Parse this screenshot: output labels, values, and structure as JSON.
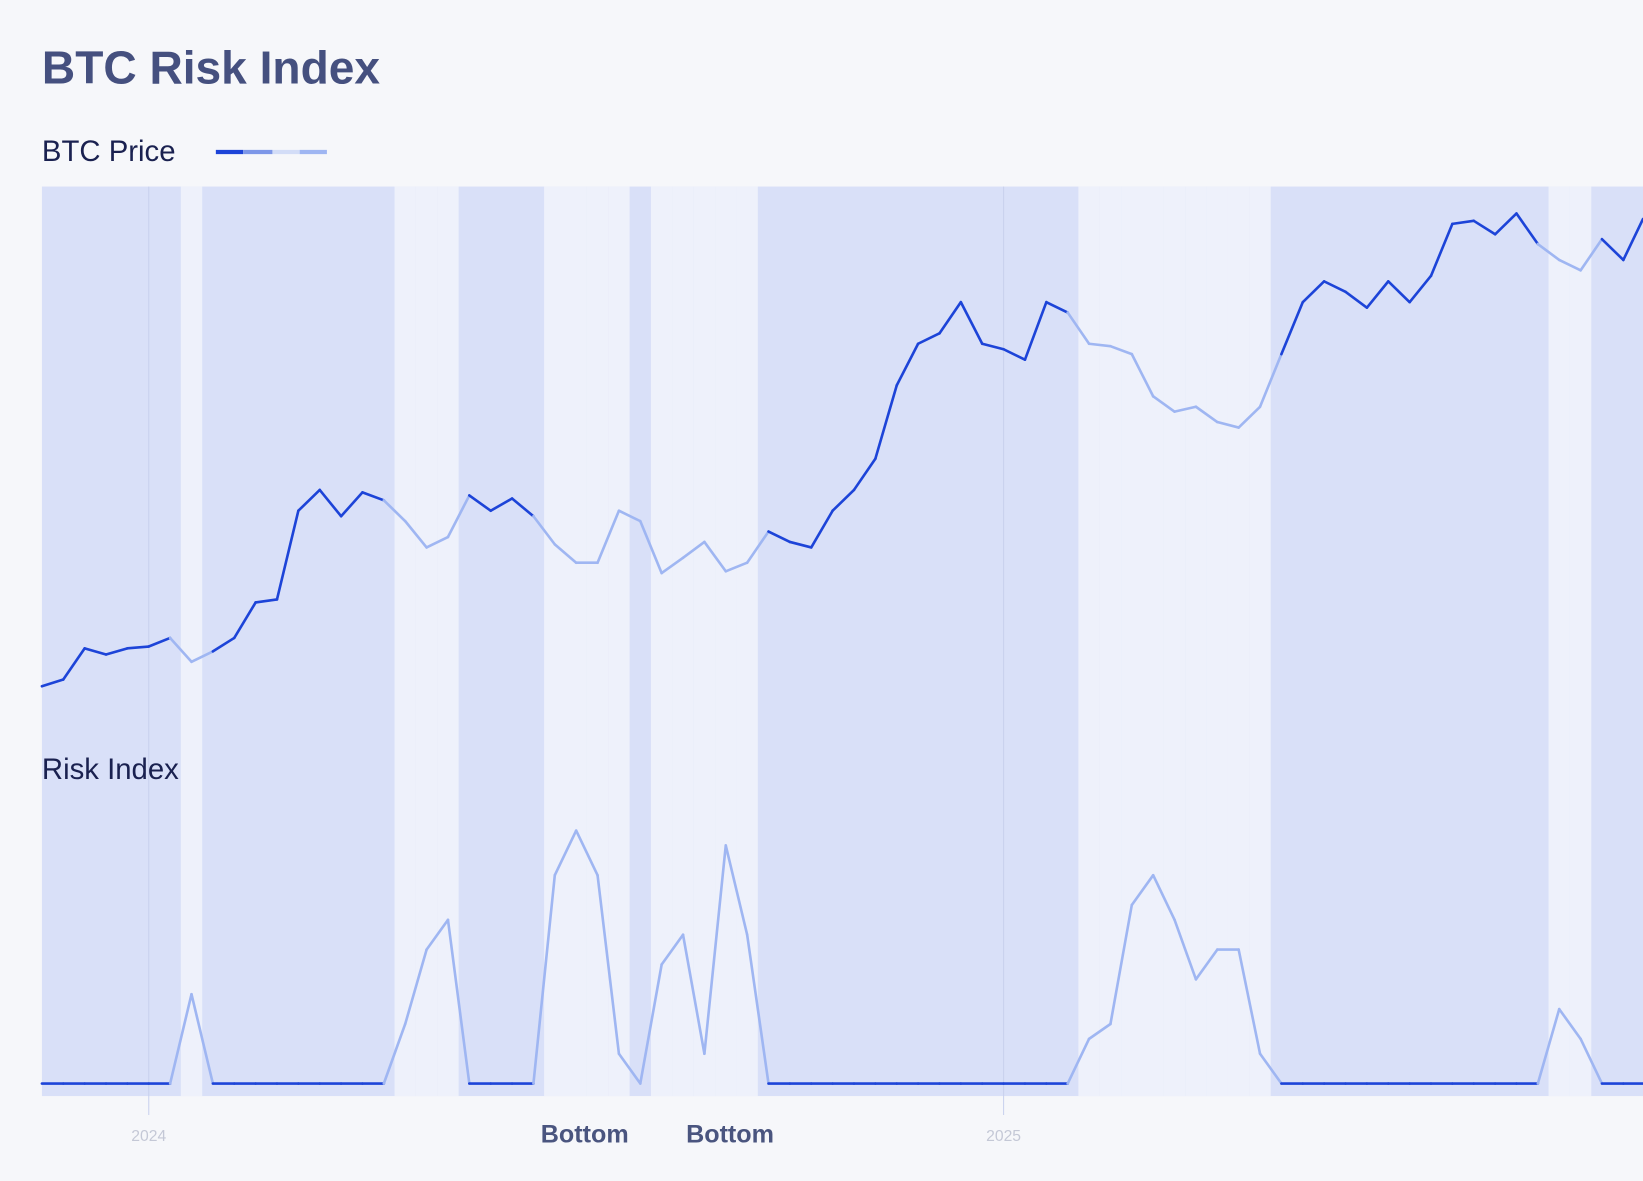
{
  "chart_data": {
    "type": "line",
    "title": "BTC Risk Index",
    "x": [
      2023.875,
      2023.9,
      2023.925,
      2023.95,
      2023.975,
      2024.0,
      2024.025,
      2024.05,
      2024.075,
      2024.1,
      2024.125,
      2024.15,
      2024.175,
      2024.2,
      2024.225,
      2024.25,
      2024.275,
      2024.3,
      2024.325,
      2024.35,
      2024.375,
      2024.4,
      2024.425,
      2024.45,
      2024.475,
      2024.5,
      2024.525,
      2024.55,
      2024.575,
      2024.6,
      2024.625,
      2024.65,
      2024.675,
      2024.7,
      2024.725,
      2024.75,
      2024.775,
      2024.8,
      2024.825,
      2024.85,
      2024.875,
      2024.9,
      2024.925,
      2024.95,
      2024.975,
      2025.0,
      2025.025,
      2025.05,
      2025.075,
      2025.1,
      2025.125,
      2025.15,
      2025.175,
      2025.2,
      2025.225,
      2025.25,
      2025.275,
      2025.3,
      2025.325,
      2025.35,
      2025.375,
      2025.4,
      2025.425,
      2025.45,
      2025.475,
      2025.5,
      2025.525,
      2025.55,
      2025.575,
      2025.6,
      2025.625,
      2025.65,
      2025.675,
      2025.7,
      2025.725,
      2025.748
    ],
    "series": [
      {
        "name": "BTC Price",
        "color": "#1d44d8",
        "values": [
          42300,
          43400,
          48500,
          47500,
          48500,
          48800,
          50200,
          46300,
          48000,
          50200,
          56000,
          56500,
          71000,
          74400,
          70100,
          74000,
          72700,
          69300,
          65000,
          66700,
          73500,
          71000,
          73000,
          70100,
          65500,
          62500,
          62500,
          71000,
          69300,
          60800,
          63300,
          65900,
          61100,
          62500,
          67600,
          65900,
          65000,
          71000,
          74400,
          79500,
          91500,
          98300,
          100000,
          105100,
          98300,
          97400,
          95700,
          105100,
          103400,
          98300,
          97900,
          96600,
          89700,
          87200,
          88000,
          85500,
          84600,
          88000,
          96600,
          105100,
          108500,
          106800,
          104200,
          108500,
          105100,
          109400,
          117900,
          118400,
          116200,
          119600,
          114600,
          112000,
          110300,
          115400,
          112000,
          118700
        ]
      },
      {
        "name": "Risk Index",
        "color": "#1d44d8",
        "axis": "y2",
        "values": [
          0,
          0,
          0,
          0,
          0,
          0,
          0,
          30,
          0,
          0,
          0,
          0,
          0,
          0,
          0,
          0,
          0,
          20,
          45,
          55,
          0,
          0,
          0,
          0,
          70,
          85,
          70,
          10,
          0,
          40,
          50,
          10,
          80,
          50,
          0,
          0,
          0,
          0,
          0,
          0,
          0,
          0,
          0,
          0,
          0,
          0,
          0,
          0,
          0,
          15,
          20,
          60,
          70,
          55,
          35,
          45,
          45,
          10,
          0,
          0,
          0,
          0,
          0,
          0,
          0,
          0,
          0,
          0,
          0,
          0,
          0,
          25,
          15,
          0,
          0,
          0
        ]
      }
    ],
    "risk_color": "#9fb6f2",
    "xlim": [
      2023.875,
      2025.748
    ],
    "xticks": [
      2024,
      2025
    ],
    "ylim": [
      38000,
      124000
    ],
    "y2lim": [
      0,
      100
    ],
    "annotations": [
      {
        "text": "Bottom",
        "x": 2024.51
      },
      {
        "text": "Bottom",
        "x": 2024.68
      }
    ]
  }
}
